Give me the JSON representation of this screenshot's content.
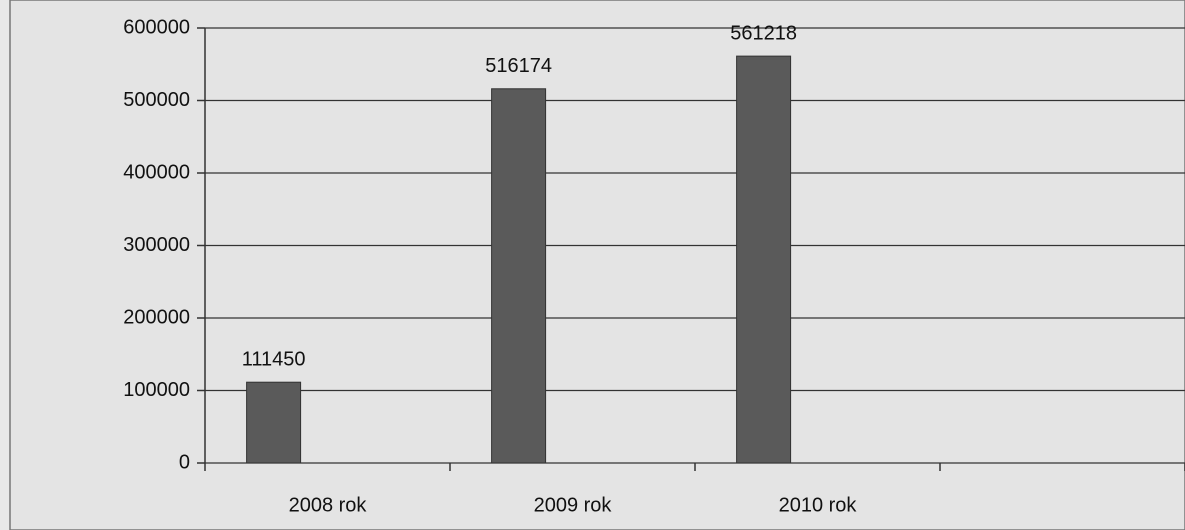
{
  "chart_data": {
    "type": "bar",
    "categories": [
      "2008 rok",
      "2009 rok",
      "2010 rok",
      null
    ],
    "values": [
      111450,
      516174,
      561218,
      null
    ],
    "color": "#5a5a5a",
    "ylim": [
      0,
      600000
    ],
    "yticks": [
      0,
      100000,
      200000,
      300000,
      400000,
      500000,
      600000
    ],
    "grid": true
  }
}
